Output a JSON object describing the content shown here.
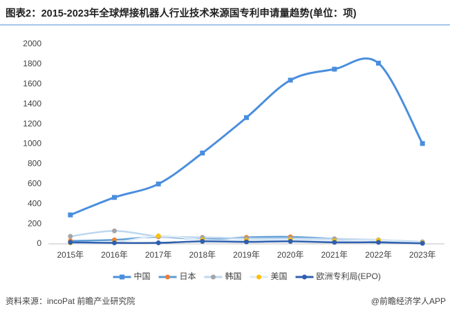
{
  "chart_data": {
    "type": "line",
    "title": "图表2：2015-2023年全球焊接机器人行业技术来源国专利申请量趋势(单位：项)",
    "source": "资料来源：incoPat 前瞻产业研究院",
    "credit": "@前瞻经济学人APP",
    "categories": [
      "2015年",
      "2016年",
      "2017年",
      "2018年",
      "2019年",
      "2020年",
      "2021年",
      "2022年",
      "2023年"
    ],
    "series": [
      {
        "name": "中国",
        "color": "#4a8ede",
        "marker_color": "#4a8ede",
        "marker": "square",
        "values": [
          290,
          465,
          600,
          910,
          1265,
          1640,
          1750,
          1810,
          1005
        ]
      },
      {
        "name": "日本",
        "color": "#5b9bd5",
        "marker_color": "#ed7d31",
        "marker": "circle",
        "values": [
          30,
          40,
          70,
          45,
          65,
          70,
          50,
          30,
          15
        ]
      },
      {
        "name": "韩国",
        "color": "#bdd7ee",
        "marker_color": "#a5a5a5",
        "marker": "circle",
        "values": [
          75,
          130,
          75,
          65,
          55,
          55,
          50,
          40,
          20
        ]
      },
      {
        "name": "美国",
        "color": "#deebf7",
        "marker_color": "#ffc000",
        "marker": "circle",
        "values": [
          10,
          15,
          80,
          40,
          35,
          40,
          30,
          35,
          10
        ]
      },
      {
        "name": "欧洲专利局(EPO)",
        "color": "#2f5fae",
        "marker_color": "#2f5fae",
        "marker": "circle",
        "values": [
          15,
          10,
          10,
          25,
          20,
          25,
          15,
          15,
          5
        ]
      }
    ],
    "ylim": [
      0,
      2000
    ],
    "yticks": [
      0,
      200,
      400,
      600,
      800,
      1000,
      1200,
      1400,
      1600,
      1800,
      2000
    ],
    "grid": false,
    "legend": "bottom"
  }
}
